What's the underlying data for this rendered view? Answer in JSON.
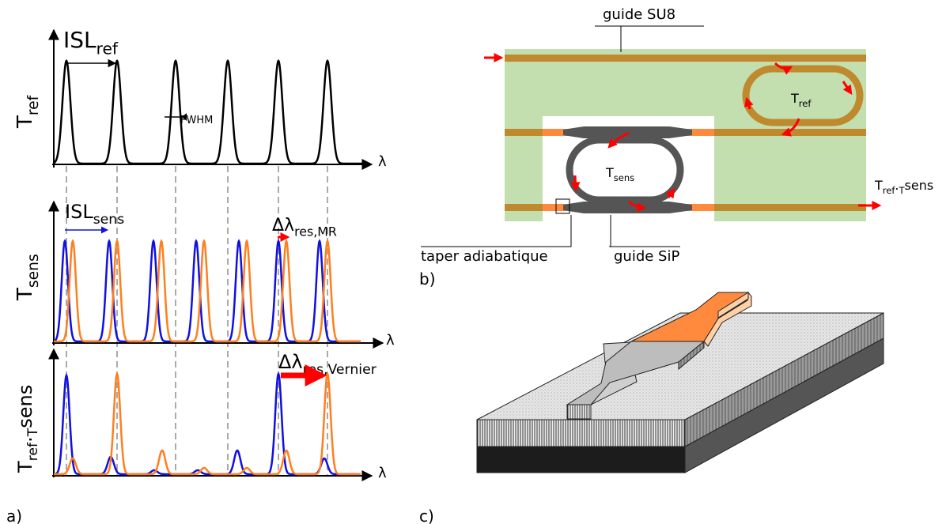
{
  "panel_a": {
    "label": "a)",
    "plot_ref": {
      "y_label": [
        "T",
        "ref"
      ],
      "x_label": "λ",
      "spacing": [
        "ISL",
        "ref"
      ],
      "width": "FWHM"
    },
    "plot_sens": {
      "y_label": [
        "T",
        "sens"
      ],
      "x_label": "λ",
      "spacing": [
        "ISL",
        "sens"
      ],
      "shift": [
        "Δλ",
        "res,MR"
      ]
    },
    "plot_product": {
      "y_label": [
        "T",
        "ref",
        ".",
        "T",
        "sens"
      ],
      "x_label": "λ",
      "shift": [
        "Δλ",
        "res,Vernier"
      ]
    }
  },
  "panel_b": {
    "label": "b)",
    "waveguide_top": "guide SU8",
    "ring_ref": [
      "T",
      "ref"
    ],
    "ring_sens": [
      "T",
      "sens"
    ],
    "output": [
      "T",
      "ref",
      ".",
      "T",
      "sens"
    ],
    "taper": "taper adiabatique",
    "waveguide_bottom": "guide SiP"
  },
  "panel_c": {
    "label": "c)"
  }
}
